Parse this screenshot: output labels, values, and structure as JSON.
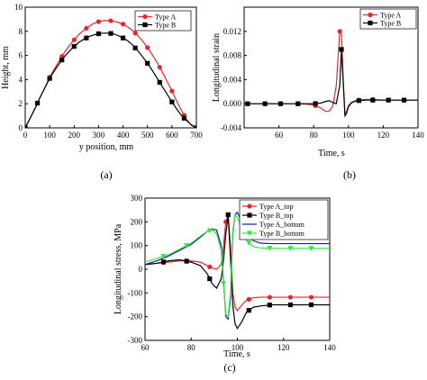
{
  "panels": [
    {
      "type": "line",
      "caption": "(a)",
      "xlabel": "y position, mm",
      "ylabel": "Height, mm",
      "xlim": [
        0,
        700
      ],
      "ylim": [
        0,
        10
      ],
      "xticks": [
        0,
        100,
        200,
        300,
        400,
        500,
        600,
        700
      ],
      "yticks": [
        0,
        2,
        4,
        6,
        8,
        10
      ],
      "legend_position": "top-right",
      "series": [
        {
          "name": "Type A",
          "color": "#e8262a",
          "marker": "circle",
          "x": [
            0,
            20,
            40,
            60,
            80,
            100,
            120,
            140,
            160,
            180,
            200,
            220,
            240,
            260,
            280,
            300,
            320,
            340,
            360,
            380,
            400,
            420,
            440,
            460,
            480,
            500,
            520,
            540,
            560,
            580,
            600,
            620,
            640,
            660,
            680,
            700
          ],
          "y": [
            0.0,
            0.8,
            1.6,
            2.5,
            3.3,
            4.2,
            4.9,
            5.6,
            6.25,
            6.8,
            7.3,
            7.75,
            8.1,
            8.4,
            8.65,
            8.8,
            8.88,
            8.9,
            8.85,
            8.75,
            8.6,
            8.35,
            8.05,
            7.65,
            7.2,
            6.65,
            6.05,
            5.4,
            4.65,
            3.85,
            3.05,
            2.2,
            1.4,
            0.7,
            0.2,
            0.0
          ],
          "markers_x": [
            0,
            50,
            100,
            150,
            200,
            250,
            300,
            350,
            400,
            450,
            500,
            550,
            600,
            650,
            700
          ]
        },
        {
          "name": "Type B",
          "color": "#000000",
          "marker": "square",
          "x": [
            0,
            20,
            40,
            60,
            80,
            100,
            120,
            140,
            160,
            180,
            200,
            220,
            240,
            260,
            280,
            300,
            320,
            340,
            360,
            380,
            400,
            420,
            440,
            460,
            480,
            500,
            520,
            540,
            560,
            580,
            600,
            620,
            640,
            660,
            680,
            700
          ],
          "y": [
            0.0,
            0.8,
            1.6,
            2.5,
            3.3,
            4.1,
            4.75,
            5.35,
            5.9,
            6.35,
            6.75,
            7.1,
            7.35,
            7.55,
            7.7,
            7.8,
            7.85,
            7.85,
            7.8,
            7.65,
            7.45,
            7.2,
            6.85,
            6.4,
            5.9,
            5.35,
            4.75,
            4.1,
            3.45,
            2.8,
            2.15,
            1.55,
            1.0,
            0.6,
            0.25,
            0.0
          ],
          "markers_x": [
            0,
            50,
            100,
            150,
            200,
            250,
            300,
            350,
            400,
            450,
            500,
            550,
            600,
            650,
            700
          ]
        }
      ]
    },
    {
      "type": "line",
      "caption": "(b)",
      "xlabel": "Time, s",
      "ylabel": "Longitudinal strain",
      "xlim": [
        40,
        140
      ],
      "ylim": [
        -0.004,
        0.016
      ],
      "xticks": [
        60,
        80,
        100,
        120,
        140
      ],
      "yticks": [
        -0.004,
        0.0,
        0.004,
        0.008,
        0.012
      ],
      "yticklabels": [
        "-0.004",
        "0.000",
        "0.004",
        "0.008",
        "0.012"
      ],
      "legend_position": "top-right",
      "series": [
        {
          "name": "Type A",
          "color": "#e8262a",
          "marker": "circle",
          "x": [
            40,
            50,
            60,
            70,
            75,
            80,
            84,
            87,
            89,
            91,
            93,
            95,
            96,
            97,
            98,
            99,
            100,
            102,
            105,
            110,
            115,
            120,
            130,
            140
          ],
          "y": [
            0.0,
            0.0,
            0.0,
            0.0,
            -5e-05,
            -0.0002,
            -0.0007,
            -0.0013,
            -0.0012,
            -0.0004,
            0.003,
            0.012,
            0.0115,
            0.004,
            -0.002,
            -0.0012,
            -0.0003,
            0.0003,
            0.0006,
            0.0007,
            0.0007,
            0.0006,
            0.0006,
            0.0006
          ],
          "markers_x": [
            42,
            52,
            61,
            71,
            81,
            95,
            106,
            114,
            123,
            132
          ]
        },
        {
          "name": "Type B",
          "color": "#000000",
          "marker": "square",
          "x": [
            40,
            50,
            60,
            70,
            75,
            80,
            84,
            87,
            89,
            91,
            93,
            95,
            96,
            97,
            98,
            99,
            100,
            102,
            105,
            110,
            115,
            120,
            130,
            140
          ],
          "y": [
            0.0,
            0.0,
            0.0,
            0.0,
            0.0,
            0.0,
            0.0001,
            0.0004,
            0.0005,
            0.0002,
            0.0,
            0.003,
            0.009,
            0.0035,
            -0.002,
            -0.0015,
            -0.0005,
            0.0002,
            0.0005,
            0.0006,
            0.0006,
            0.0006,
            0.0006,
            0.0006
          ],
          "markers_x": [
            42,
            52,
            61,
            71,
            81,
            96,
            106,
            114,
            123,
            132
          ]
        }
      ]
    },
    {
      "type": "line",
      "caption": "(c)",
      "xlabel": "Time, s",
      "ylabel": "Longitudinal stress, MPa",
      "xlim": [
        60,
        140
      ],
      "ylim": [
        -300,
        300
      ],
      "xticks": [
        60,
        80,
        100,
        120,
        140
      ],
      "yticks": [
        -300,
        -200,
        -100,
        0,
        100,
        200,
        300
      ],
      "legend_position": "top-right",
      "series": [
        {
          "name": "Type A_top",
          "color": "#e8262a",
          "marker": "circle",
          "x": [
            60,
            65,
            70,
            75,
            80,
            84,
            87,
            89,
            91,
            93,
            94,
            95,
            96,
            97,
            98,
            99,
            100,
            102,
            104,
            107,
            110,
            115,
            120,
            130,
            140
          ],
          "y": [
            20,
            25,
            30,
            35,
            35,
            30,
            15,
            5,
            0,
            20,
            100,
            200,
            230,
            100,
            -100,
            -160,
            -175,
            -150,
            -130,
            -120,
            -118,
            -118,
            -118,
            -118,
            -118
          ],
          "markers_x": [
            68,
            78,
            88,
            95,
            105,
            114,
            123,
            132
          ]
        },
        {
          "name": "Type B_top",
          "color": "#000000",
          "marker": "square",
          "x": [
            60,
            65,
            70,
            75,
            80,
            84,
            87,
            89,
            91,
            93,
            94,
            95,
            96,
            97,
            98,
            99,
            100,
            102,
            104,
            107,
            110,
            115,
            120,
            130,
            140
          ],
          "y": [
            20,
            25,
            35,
            40,
            30,
            15,
            -20,
            -60,
            -80,
            -40,
            40,
            150,
            230,
            50,
            -150,
            -230,
            -250,
            -220,
            -180,
            -160,
            -155,
            -150,
            -150,
            -150,
            -150
          ],
          "markers_x": [
            68,
            78,
            88,
            96,
            105,
            114,
            123,
            132
          ]
        },
        {
          "name": "Type A_bottom",
          "color": "#1a1ab4",
          "marker": "none",
          "x": [
            60,
            65,
            70,
            75,
            80,
            84,
            87,
            89,
            91,
            93,
            94,
            95,
            96,
            97,
            98,
            99,
            100,
            102,
            104,
            107,
            110,
            115,
            120,
            130,
            140
          ],
          "y": [
            20,
            35,
            55,
            80,
            105,
            135,
            160,
            170,
            165,
            100,
            -50,
            -200,
            -210,
            -120,
            150,
            230,
            240,
            200,
            150,
            120,
            110,
            108,
            108,
            108,
            108
          ]
        },
        {
          "name": "Type B_bottom",
          "color": "#2ee83a",
          "marker": "triangle-down",
          "x": [
            60,
            65,
            70,
            75,
            80,
            84,
            87,
            89,
            91,
            93,
            94,
            95,
            96,
            97,
            98,
            99,
            100,
            102,
            104,
            107,
            110,
            115,
            120,
            130,
            140
          ],
          "y": [
            30,
            45,
            60,
            85,
            110,
            140,
            160,
            165,
            150,
            80,
            -60,
            -190,
            -200,
            -100,
            160,
            230,
            220,
            170,
            120,
            95,
            90,
            88,
            88,
            88,
            88
          ],
          "markers_x": [
            68,
            78,
            88,
            94,
            105,
            114,
            123,
            132
          ]
        }
      ]
    }
  ]
}
